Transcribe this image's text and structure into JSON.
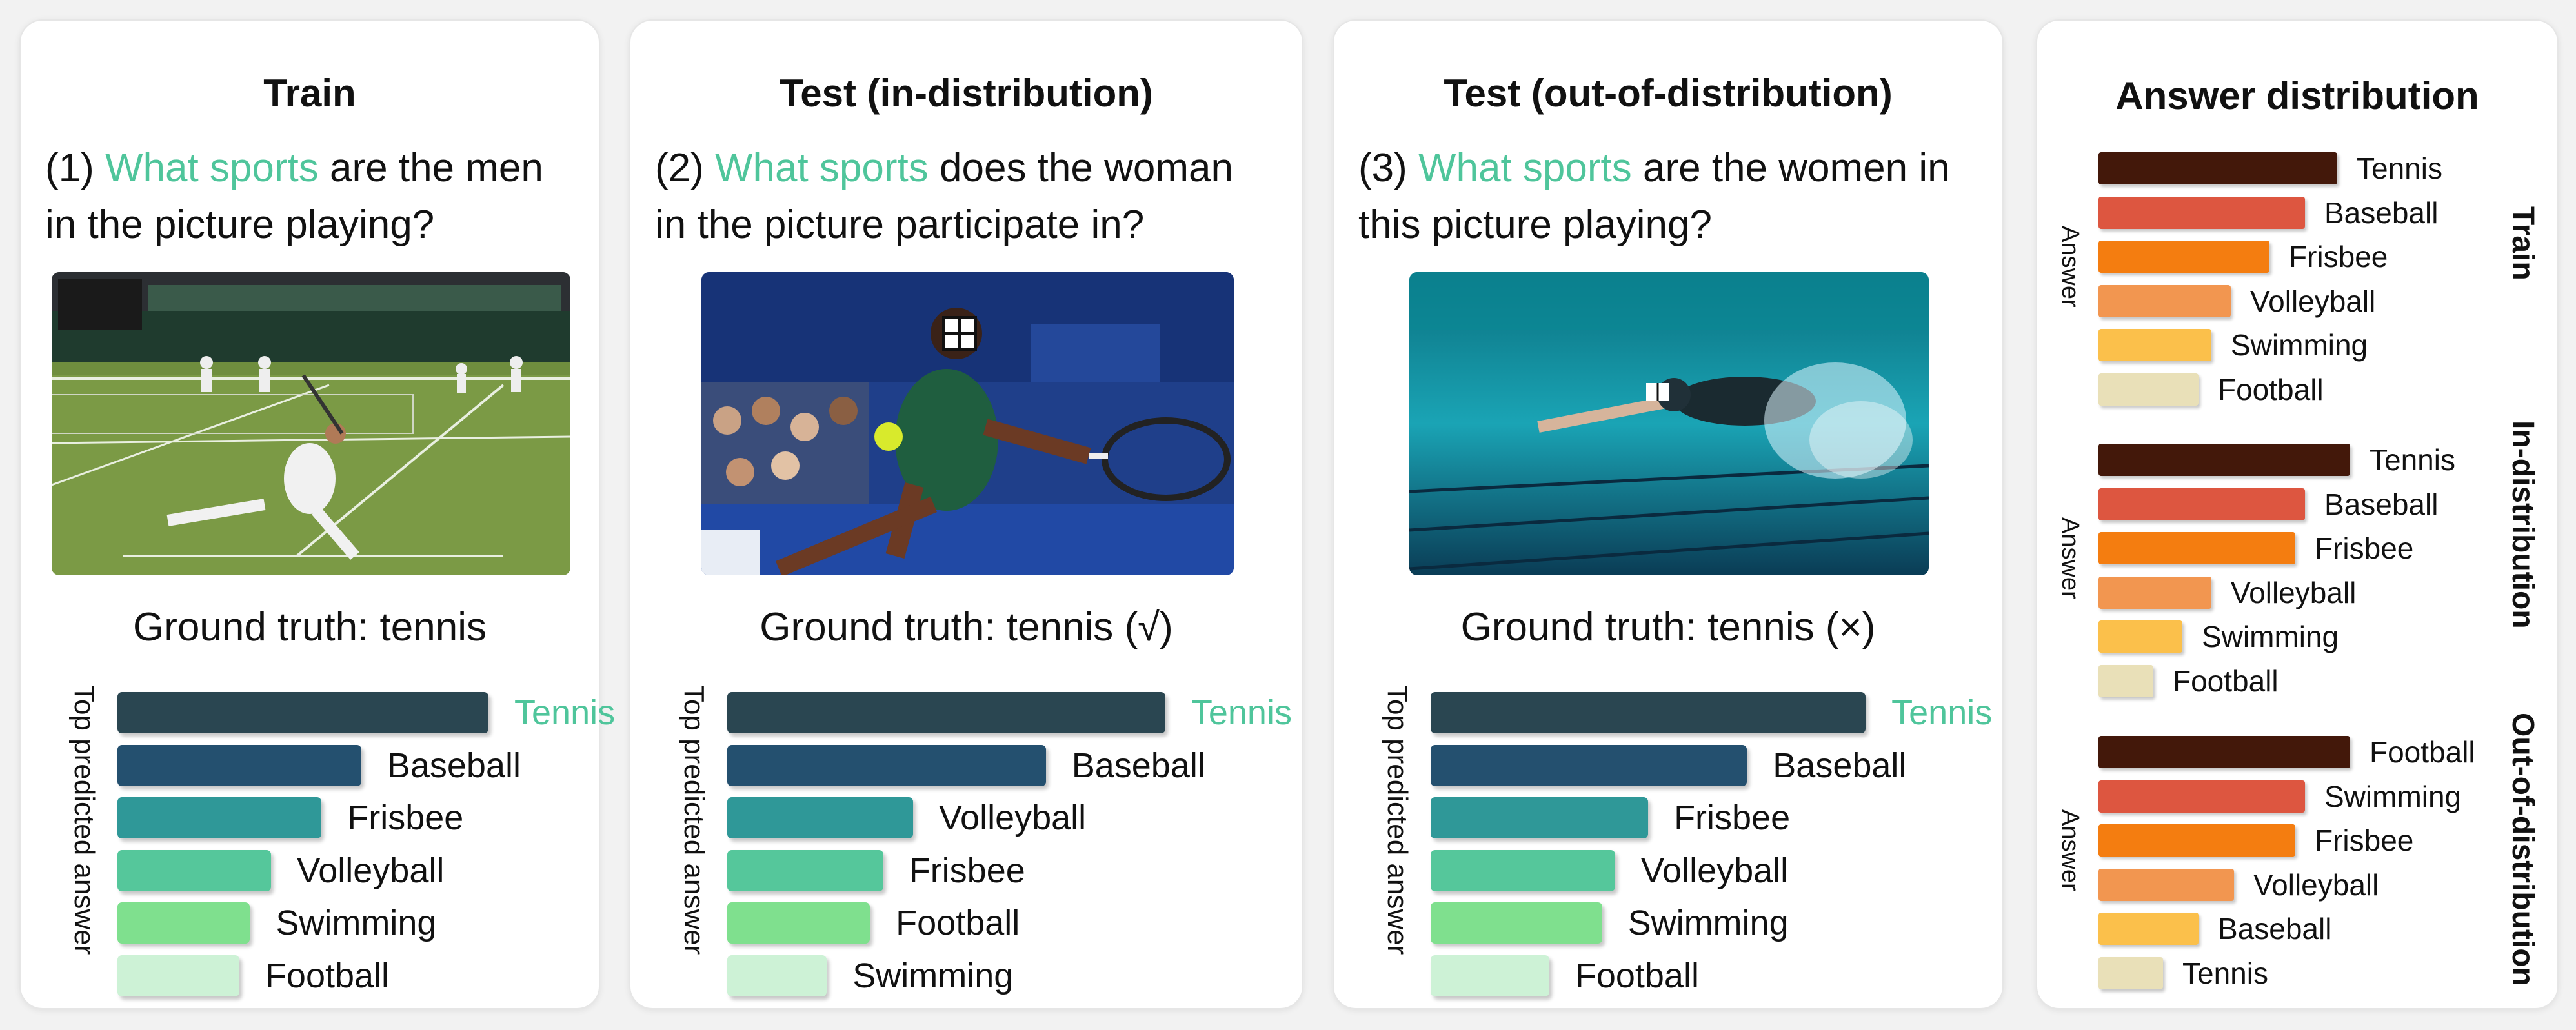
{
  "panels": [
    {
      "title": "Train",
      "question_prefix": "(1) ",
      "question_highlight": "What sports",
      "question_line1_rest": " are the men",
      "question_line2": "in the picture playing?",
      "ground_truth": "Ground truth: tennis",
      "axis_label": "Top predicted answer",
      "answers": [
        {
          "label": "Tennis",
          "value": 0.7,
          "highlight": true
        },
        {
          "label": "Baseball",
          "value": 0.46
        },
        {
          "label": "Frisbee",
          "value": 0.385
        },
        {
          "label": "Volleyball",
          "value": 0.29
        },
        {
          "label": "Swimming",
          "value": 0.25
        },
        {
          "label": "Football",
          "value": 0.23
        }
      ]
    },
    {
      "title": "Test (in-distribution)",
      "question_prefix": "(2) ",
      "question_highlight": "What sports",
      "question_line1_rest": " does the woman",
      "question_line2": "in the picture participate in?",
      "ground_truth": "Ground truth: tennis (√)",
      "axis_label": "Top predicted answer",
      "answers": [
        {
          "label": "Tennis",
          "value": 0.66,
          "highlight": true
        },
        {
          "label": "Baseball",
          "value": 0.48
        },
        {
          "label": "Volleyball",
          "value": 0.28
        },
        {
          "label": "Frisbee",
          "value": 0.235
        },
        {
          "label": "Football",
          "value": 0.215
        },
        {
          "label": "Swimming",
          "value": 0.15
        }
      ]
    },
    {
      "title": "Test (out-of-distribution)",
      "question_prefix": "(3) ",
      "question_highlight": "What sports",
      "question_line1_rest": " are the women in",
      "question_line2": "this picture playing?",
      "ground_truth": "Ground truth: tennis (×)",
      "axis_label": "Top predicted answer",
      "answers": [
        {
          "label": "Tennis",
          "value": 0.66,
          "highlight": true
        },
        {
          "label": "Baseball",
          "value": 0.48
        },
        {
          "label": "Frisbee",
          "value": 0.33
        },
        {
          "label": "Volleyball",
          "value": 0.28
        },
        {
          "label": "Swimming",
          "value": 0.26
        },
        {
          "label": "Football",
          "value": 0.18
        }
      ]
    }
  ],
  "distribution": {
    "title": "Answer distribution",
    "axis_label": "Answer",
    "sections": [
      {
        "name": "Train",
        "answers": [
          {
            "label": "Tennis",
            "value": 0.37
          },
          {
            "label": "Baseball",
            "value": 0.32
          },
          {
            "label": "Frisbee",
            "value": 0.265
          },
          {
            "label": "Volleyball",
            "value": 0.205
          },
          {
            "label": "Swimming",
            "value": 0.175
          },
          {
            "label": "Football",
            "value": 0.155
          }
        ]
      },
      {
        "name": "In-distribution",
        "answers": [
          {
            "label": "Tennis",
            "value": 0.39
          },
          {
            "label": "Baseball",
            "value": 0.32
          },
          {
            "label": "Frisbee",
            "value": 0.305
          },
          {
            "label": "Volleyball",
            "value": 0.175
          },
          {
            "label": "Swimming",
            "value": 0.13
          },
          {
            "label": "Football",
            "value": 0.085
          }
        ]
      },
      {
        "name": "Out-of-distribution",
        "answers": [
          {
            "label": "Football",
            "value": 0.39
          },
          {
            "label": "Swimming",
            "value": 0.32
          },
          {
            "label": "Frisbee",
            "value": 0.305
          },
          {
            "label": "Volleyball",
            "value": 0.21
          },
          {
            "label": "Baseball",
            "value": 0.155
          },
          {
            "label": "Tennis",
            "value": 0.1
          }
        ]
      }
    ]
  },
  "colors": {
    "highlight": "#4fc59b",
    "pred_bars": [
      "#2a4651",
      "#24506f",
      "#2f9898",
      "#55c79b",
      "#7fe08e",
      "#cdf2d6"
    ],
    "dist_bars": [
      "#43180a",
      "#dd5640",
      "#f47d10",
      "#f29650",
      "#fbc04b",
      "#e9e0b8"
    ]
  }
}
